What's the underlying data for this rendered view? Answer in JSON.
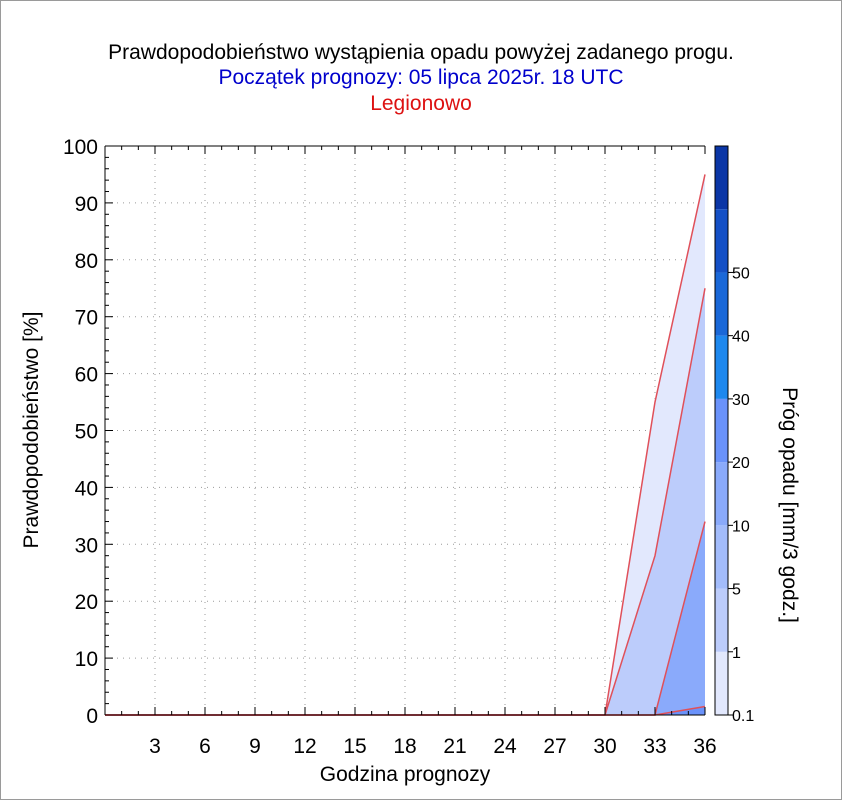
{
  "chart_data": {
    "type": "area",
    "title": "Prawdopodobieństwo wystąpienia opadu powyżej zadanego progu.",
    "subtitle": "Początek prognozy: 05 lipca 2025r. 18 UTC",
    "location": "Legionowo",
    "xlabel": "Godzina prognozy",
    "ylabel": "Prawdopodobieństwo [%]",
    "colorbar_label": "Próg opadu [mm/3 godz.]",
    "xlim": [
      0,
      36
    ],
    "ylim": [
      0,
      100
    ],
    "x_ticks": [
      3,
      6,
      9,
      12,
      15,
      18,
      21,
      24,
      27,
      30,
      33,
      36
    ],
    "y_ticks": [
      0,
      10,
      20,
      30,
      40,
      50,
      60,
      70,
      80,
      90,
      100
    ],
    "grid": true,
    "x": [
      0,
      3,
      6,
      9,
      12,
      15,
      18,
      21,
      24,
      27,
      30,
      33,
      36
    ],
    "series": [
      {
        "threshold": 0.1,
        "color": "#e2e8fd",
        "values": [
          0,
          0,
          0,
          0,
          0,
          0,
          0,
          0,
          0,
          0,
          0,
          55,
          95
        ]
      },
      {
        "threshold": 1,
        "color": "#bcccfb",
        "values": [
          0,
          0,
          0,
          0,
          0,
          0,
          0,
          0,
          0,
          0,
          0,
          28,
          75
        ]
      },
      {
        "threshold": 5,
        "color": "#8aaafb",
        "values": [
          0,
          0,
          0,
          0,
          0,
          0,
          0,
          0,
          0,
          0,
          0,
          0,
          34
        ]
      },
      {
        "threshold": 10,
        "color": "#6a92fa",
        "values": [
          0,
          0,
          0,
          0,
          0,
          0,
          0,
          0,
          0,
          0,
          0,
          0,
          1.5
        ]
      }
    ],
    "colorbar": {
      "labels": [
        "0.1",
        "1",
        "5",
        "10",
        "20",
        "30",
        "40",
        "50"
      ],
      "colors": [
        "#e2e8fd",
        "#bcccfb",
        "#a3bcfb",
        "#8aaafb",
        "#6a92fa",
        "#1e88ee",
        "#1a68d8",
        "#1450c6",
        "#0b36a6"
      ]
    },
    "line_color": "#e0505a"
  }
}
